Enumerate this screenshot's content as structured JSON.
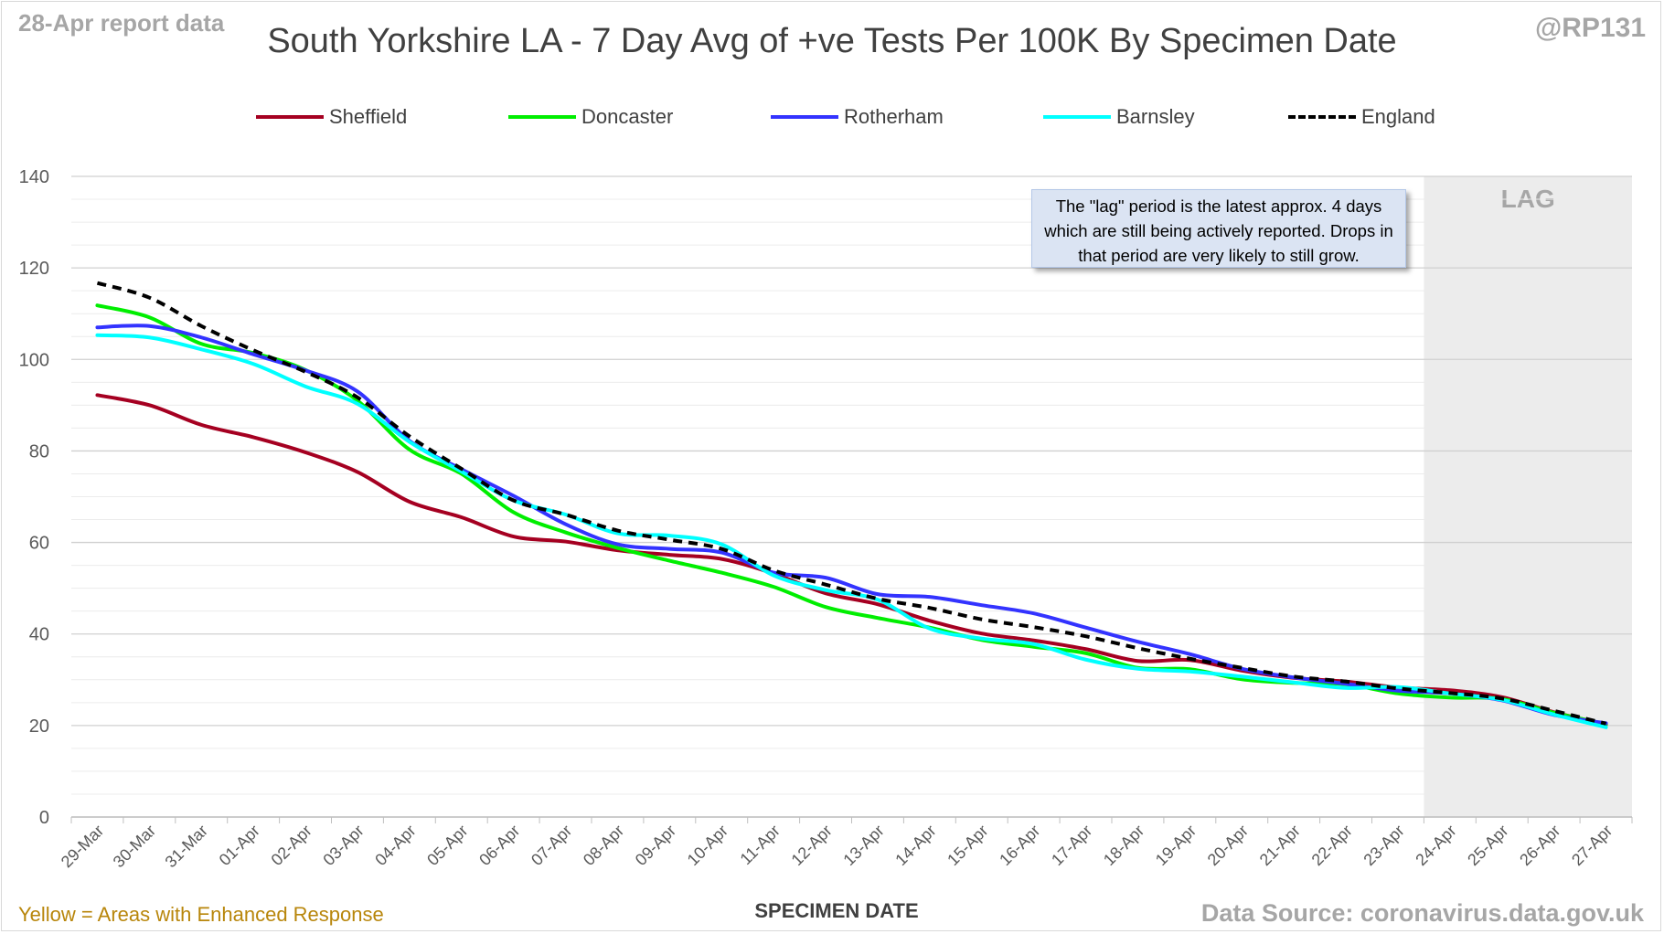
{
  "header": {
    "report_date": "28-Apr report data",
    "handle": "@RP131",
    "title": "South Yorkshire LA - 7 Day Avg of +ve Tests Per 100K By Specimen Date"
  },
  "annotation": {
    "lag_label": "LAG",
    "note": "The \"lag\" period is the latest approx. 4 days which are still being actively reported. Drops in that period are very likely to still grow."
  },
  "footer": {
    "left": "Yellow = Areas with Enhanced Response",
    "center": "SPECIMEN DATE",
    "right": "Data Source: coronavirus.data.gov.uk"
  },
  "colors": {
    "Sheffield": "#a50021",
    "Doncaster": "#00ee00",
    "Rotherham": "#3333ff",
    "Barnsley": "#00ffff",
    "England": "#000000",
    "footer_left": "#b8860b",
    "lag_shading": "#ececec"
  },
  "chart_data": {
    "type": "line",
    "title": "South Yorkshire LA - 7 Day Avg of +ve Tests Per 100K By Specimen Date",
    "xlabel": "SPECIMEN DATE",
    "ylabel": "",
    "ylim": [
      0,
      140
    ],
    "yticks": [
      0,
      20,
      40,
      60,
      80,
      100,
      120,
      140
    ],
    "grid": true,
    "legend_position": "top",
    "lag_region": {
      "from": "24-Apr",
      "to": "27-Apr",
      "label": "LAG"
    },
    "x": [
      "29-Mar",
      "30-Mar",
      "31-Mar",
      "01-Apr",
      "02-Apr",
      "03-Apr",
      "04-Apr",
      "05-Apr",
      "06-Apr",
      "07-Apr",
      "08-Apr",
      "09-Apr",
      "10-Apr",
      "11-Apr",
      "12-Apr",
      "13-Apr",
      "14-Apr",
      "15-Apr",
      "16-Apr",
      "17-Apr",
      "18-Apr",
      "19-Apr",
      "20-Apr",
      "21-Apr",
      "22-Apr",
      "23-Apr",
      "24-Apr",
      "25-Apr",
      "26-Apr",
      "27-Apr"
    ],
    "series": [
      {
        "name": "Sheffield",
        "dashed": false,
        "values": [
          92.2,
          90.0,
          85.7,
          83.0,
          79.7,
          75.4,
          68.9,
          65.5,
          61.3,
          60.2,
          58.3,
          57.3,
          56.4,
          53.2,
          48.9,
          46.5,
          42.9,
          40.1,
          38.6,
          36.7,
          34.1,
          34.3,
          32.0,
          30.4,
          29.6,
          28.3,
          27.7,
          26.2,
          22.9,
          20.2
        ]
      },
      {
        "name": "Doncaster",
        "dashed": false,
        "values": [
          111.8,
          109.2,
          103.4,
          101.4,
          97.7,
          91.0,
          80.3,
          75.0,
          66.6,
          62.2,
          58.8,
          56.0,
          53.4,
          50.3,
          45.9,
          43.5,
          41.4,
          38.7,
          37.2,
          35.8,
          32.6,
          32.3,
          30.1,
          29.3,
          29.0,
          27.0,
          26.1,
          25.8,
          22.8,
          20.3
        ]
      },
      {
        "name": "Rotherham",
        "dashed": false,
        "values": [
          107.0,
          107.3,
          104.8,
          101.1,
          97.6,
          93.0,
          82.2,
          76.0,
          70.2,
          64.0,
          59.6,
          58.6,
          57.8,
          53.4,
          52.3,
          48.7,
          48.1,
          46.3,
          44.5,
          41.4,
          38.3,
          35.6,
          32.4,
          30.5,
          29.1,
          27.6,
          27.0,
          25.5,
          22.3,
          20.5
        ]
      },
      {
        "name": "Barnsley",
        "dashed": false,
        "values": [
          105.3,
          104.8,
          102.2,
          99.0,
          94.1,
          90.3,
          82.0,
          75.5,
          69.2,
          66.1,
          62.0,
          61.5,
          59.6,
          52.8,
          49.6,
          47.5,
          41.2,
          39.0,
          37.8,
          34.4,
          32.4,
          31.8,
          30.7,
          29.4,
          28.2,
          28.4,
          27.0,
          25.6,
          22.4,
          19.6
        ]
      },
      {
        "name": "England",
        "dashed": true,
        "values": [
          116.7,
          113.5,
          107.3,
          102.0,
          97.3,
          91.7,
          83.2,
          76.1,
          69.2,
          66.1,
          62.6,
          60.6,
          58.6,
          53.9,
          50.8,
          47.7,
          45.7,
          43.2,
          41.5,
          39.5,
          36.9,
          34.6,
          32.6,
          30.7,
          29.6,
          28.1,
          27.1,
          25.9,
          23.2,
          20.4
        ]
      }
    ]
  }
}
